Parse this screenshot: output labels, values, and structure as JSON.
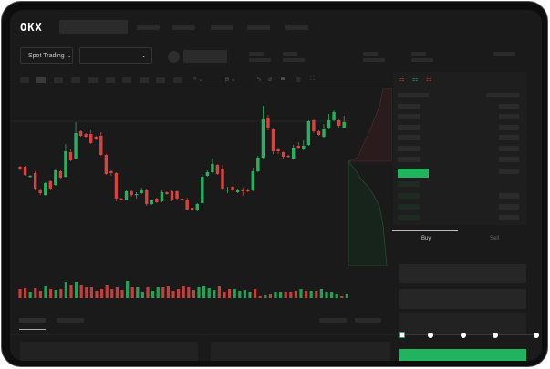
{
  "header": {
    "logo": "OKX",
    "nav_items": [
      "",
      "",
      "",
      "",
      ""
    ]
  },
  "toolbar": {
    "market_selector": "Spot Trading",
    "market_selector_icon": "chevron-down-icon",
    "pair_selector_icon": "chevron-down-icon"
  },
  "colors": {
    "up": "#22b35e",
    "down": "#d9423f",
    "background": "#1a1a1a",
    "buy_button": "#22b35e"
  },
  "chart_data": {
    "type": "candlestick",
    "grid": false,
    "candles": [
      [
        68,
        69,
        64,
        65
      ],
      [
        68,
        69,
        58,
        59
      ],
      [
        57,
        59,
        56,
        58
      ],
      [
        61,
        63,
        43,
        44
      ],
      [
        43,
        44,
        37,
        39
      ],
      [
        37,
        51,
        36,
        50
      ],
      [
        52,
        53,
        43,
        44
      ],
      [
        48,
        65,
        47,
        64
      ],
      [
        63,
        64,
        55,
        56
      ],
      [
        57,
        93,
        56,
        85
      ],
      [
        84,
        87,
        74,
        75
      ],
      [
        77,
        117,
        76,
        105
      ],
      [
        107,
        108,
        101,
        102
      ],
      [
        104,
        105,
        99,
        101
      ],
      [
        104,
        108,
        93,
        94
      ],
      [
        101,
        102,
        97,
        98
      ],
      [
        102,
        106,
        80,
        81
      ],
      [
        81,
        82,
        59,
        60
      ],
      [
        63,
        64,
        58,
        61
      ],
      [
        61,
        62,
        30,
        33
      ],
      [
        33,
        34,
        31,
        32
      ],
      [
        32,
        43,
        31,
        41
      ],
      [
        41,
        43,
        35,
        37
      ],
      [
        37,
        40,
        33,
        38
      ],
      [
        39,
        45,
        38,
        43
      ],
      [
        43,
        44,
        25,
        27
      ],
      [
        27,
        32,
        26,
        31
      ],
      [
        33,
        34,
        28,
        29
      ],
      [
        30,
        42,
        29,
        40
      ],
      [
        40,
        41,
        37,
        38
      ],
      [
        41,
        42,
        30,
        32
      ],
      [
        41,
        42,
        31,
        33
      ],
      [
        33,
        33,
        31,
        32
      ],
      [
        32,
        34,
        20,
        21
      ],
      [
        23,
        24,
        20,
        21
      ],
      [
        20,
        28,
        19,
        27
      ],
      [
        28,
        60,
        27,
        57
      ],
      [
        58,
        64,
        57,
        62
      ],
      [
        62,
        77,
        61,
        71
      ],
      [
        70,
        71,
        59,
        60
      ],
      [
        66,
        70,
        43,
        44
      ],
      [
        42,
        46,
        39,
        43
      ],
      [
        46,
        47,
        41,
        42
      ],
      [
        40,
        44,
        39,
        43
      ],
      [
        43,
        45,
        36,
        41
      ],
      [
        43,
        44,
        40,
        41
      ],
      [
        43,
        67,
        41,
        63
      ],
      [
        63,
        80,
        62,
        78
      ],
      [
        78,
        135,
        77,
        120
      ],
      [
        122,
        125,
        108,
        110
      ],
      [
        109,
        110,
        82,
        85
      ],
      [
        87,
        89,
        82,
        85
      ],
      [
        84,
        85,
        77,
        79
      ],
      [
        80,
        81,
        78,
        79
      ],
      [
        77,
        92,
        76,
        89
      ],
      [
        91,
        95,
        88,
        89
      ],
      [
        87,
        97,
        86,
        91
      ],
      [
        92,
        119,
        91,
        118
      ],
      [
        119,
        120,
        105,
        107
      ],
      [
        107,
        108,
        102,
        103
      ],
      [
        101,
        115,
        100,
        109
      ],
      [
        110,
        126,
        109,
        119
      ],
      [
        119,
        130,
        118,
        128
      ],
      [
        119,
        120,
        110,
        113
      ],
      [
        111,
        124,
        110,
        117
      ]
    ],
    "volume": [
      [
        10,
        "down"
      ],
      [
        11,
        "down"
      ],
      [
        7,
        "up"
      ],
      [
        11,
        "down"
      ],
      [
        8,
        "down"
      ],
      [
        13,
        "up"
      ],
      [
        10,
        "down"
      ],
      [
        9,
        "up"
      ],
      [
        10,
        "down"
      ],
      [
        17,
        "up"
      ],
      [
        14,
        "down"
      ],
      [
        17,
        "up"
      ],
      [
        14,
        "down"
      ],
      [
        12,
        "down"
      ],
      [
        12,
        "down"
      ],
      [
        8,
        "down"
      ],
      [
        10,
        "down"
      ],
      [
        14,
        "down"
      ],
      [
        10,
        "down"
      ],
      [
        12,
        "down"
      ],
      [
        9,
        "down"
      ],
      [
        19,
        "up"
      ],
      [
        12,
        "down"
      ],
      [
        12,
        "up"
      ],
      [
        7,
        "up"
      ],
      [
        12,
        "down"
      ],
      [
        8,
        "up"
      ],
      [
        12,
        "up"
      ],
      [
        12,
        "down"
      ],
      [
        13,
        "down"
      ],
      [
        8,
        "down"
      ],
      [
        10,
        "down"
      ],
      [
        13,
        "down"
      ],
      [
        12,
        "down"
      ],
      [
        9,
        "down"
      ],
      [
        12,
        "up"
      ],
      [
        13,
        "up"
      ],
      [
        11,
        "up"
      ],
      [
        9,
        "up"
      ],
      [
        13,
        "down"
      ],
      [
        7,
        "down"
      ],
      [
        10,
        "down"
      ],
      [
        10,
        "up"
      ],
      [
        8,
        "up"
      ],
      [
        9,
        "up"
      ],
      [
        6,
        "up"
      ],
      [
        10,
        "down"
      ],
      [
        2,
        "down"
      ],
      [
        3,
        "up"
      ],
      [
        4,
        "down"
      ],
      [
        7,
        "up"
      ],
      [
        6,
        "up"
      ],
      [
        7,
        "down"
      ],
      [
        7,
        "down"
      ],
      [
        8,
        "down"
      ],
      [
        10,
        "up"
      ],
      [
        8,
        "down"
      ],
      [
        8,
        "up"
      ],
      [
        8,
        "down"
      ],
      [
        10,
        "up"
      ],
      [
        6,
        "up"
      ],
      [
        6,
        "up"
      ],
      [
        4,
        "up"
      ],
      [
        2,
        "down"
      ],
      [
        4,
        "up"
      ]
    ]
  },
  "orderbook": {
    "view_icons": [
      "orderbook-both-icon",
      "orderbook-bids-icon",
      "orderbook-asks-icon"
    ]
  },
  "trade": {
    "tabs": [
      {
        "label": "Buy",
        "active": true
      },
      {
        "label": "Sell",
        "active": false
      }
    ],
    "slider_percent": 0,
    "slider_marks": [
      0,
      25,
      50,
      75,
      100
    ]
  }
}
